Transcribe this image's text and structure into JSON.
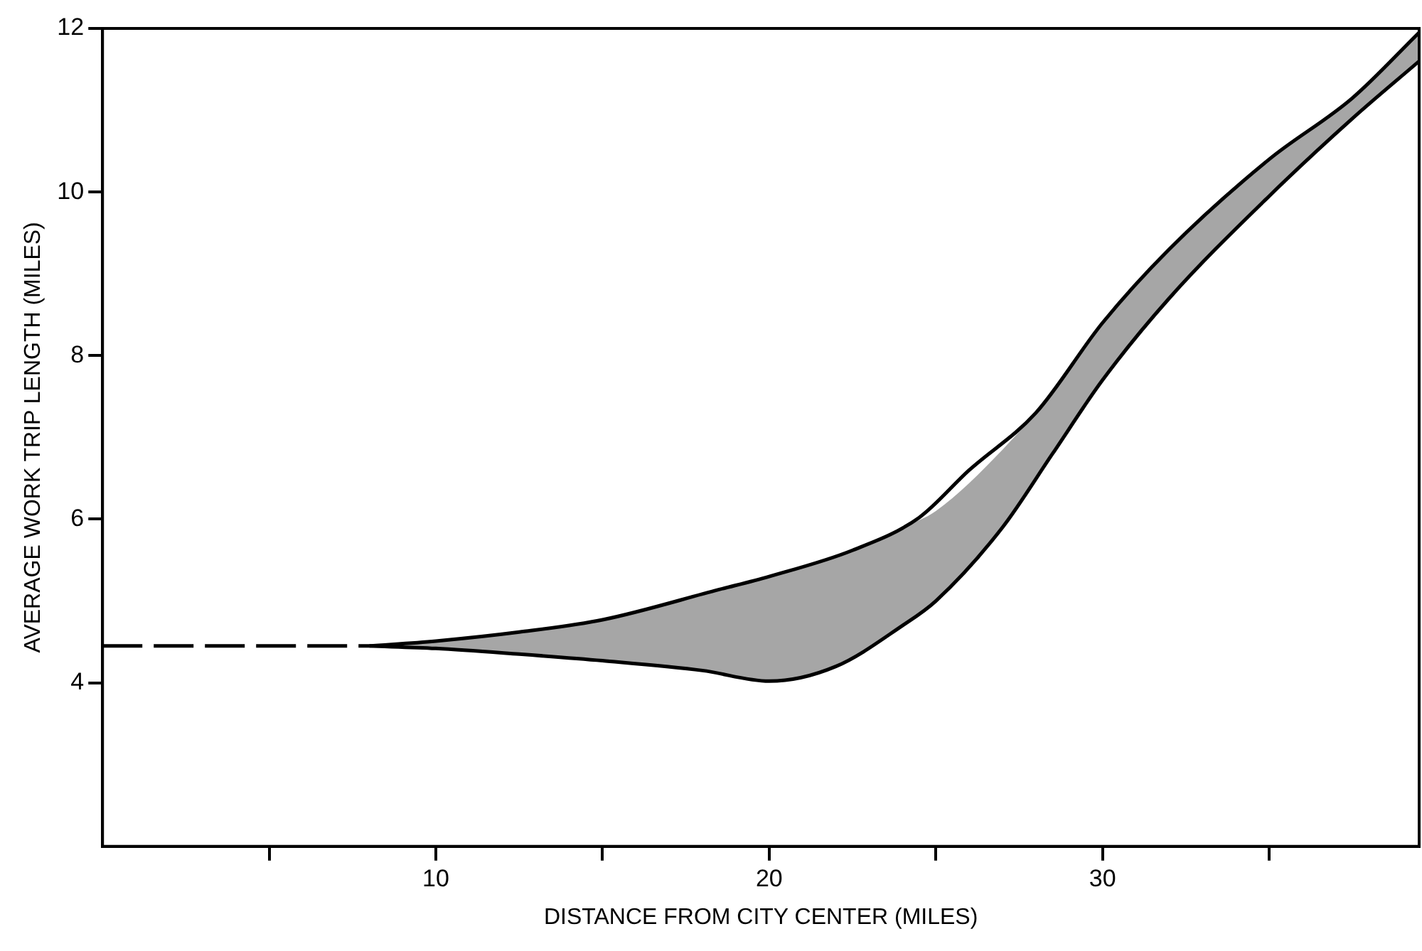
{
  "chart_data": {
    "type": "line",
    "xlabel": "DISTANCE FROM CITY CENTER (MILES)",
    "ylabel": "AVERAGE WORK TRIP LENGTH (MILES)",
    "xlim": [
      0,
      39.5
    ],
    "xticks": [
      {
        "value": 5,
        "label": null
      },
      10,
      {
        "value": 15,
        "label": null
      },
      20,
      {
        "value": 25,
        "label": null
      },
      30,
      {
        "value": 35,
        "label": null
      }
    ],
    "ylim": [
      2,
      12
    ],
    "yticks": [
      4,
      6,
      8,
      10,
      12
    ],
    "legend": false,
    "marker": "none",
    "series": [
      {
        "color": "#000000",
        "line_style": "dashed",
        "x": [
          0,
          8
        ],
        "values": [
          4.45,
          4.45
        ]
      },
      {
        "color": "#000000",
        "x": [
          8,
          10,
          12.5,
          15,
          18.5,
          20,
          22.5,
          24.5,
          26,
          28,
          30,
          32,
          35,
          37.5,
          39.5
        ],
        "values": [
          4.45,
          4.51,
          4.62,
          4.77,
          5.14,
          5.3,
          5.62,
          6.02,
          6.6,
          7.3,
          8.4,
          9.3,
          10.4,
          11.15,
          11.95
        ]
      },
      {
        "color": "#000000",
        "x": [
          8,
          10,
          12.5,
          15,
          18,
          20,
          22,
          24,
          25,
          27,
          28.5,
          30,
          32,
          35,
          37.5,
          39.5
        ],
        "values": [
          4.45,
          4.42,
          4.35,
          4.27,
          4.15,
          4.02,
          4.2,
          4.7,
          5.0,
          5.9,
          6.8,
          7.7,
          8.7,
          9.95,
          10.9,
          11.6
        ],
        "lower": [
          4.45,
          4.42,
          4.35,
          4.27,
          4.15,
          4.02,
          4.2,
          4.7,
          5.0,
          5.9,
          6.8,
          7.7,
          8.7,
          9.95,
          10.9,
          11.6
        ],
        "upper": [
          4.45,
          4.51,
          4.62,
          4.77,
          5.07,
          5.3,
          5.55,
          5.9,
          6.1,
          6.85,
          7.55,
          8.4,
          9.3,
          10.4,
          11.15,
          11.95
        ]
      }
    ]
  }
}
